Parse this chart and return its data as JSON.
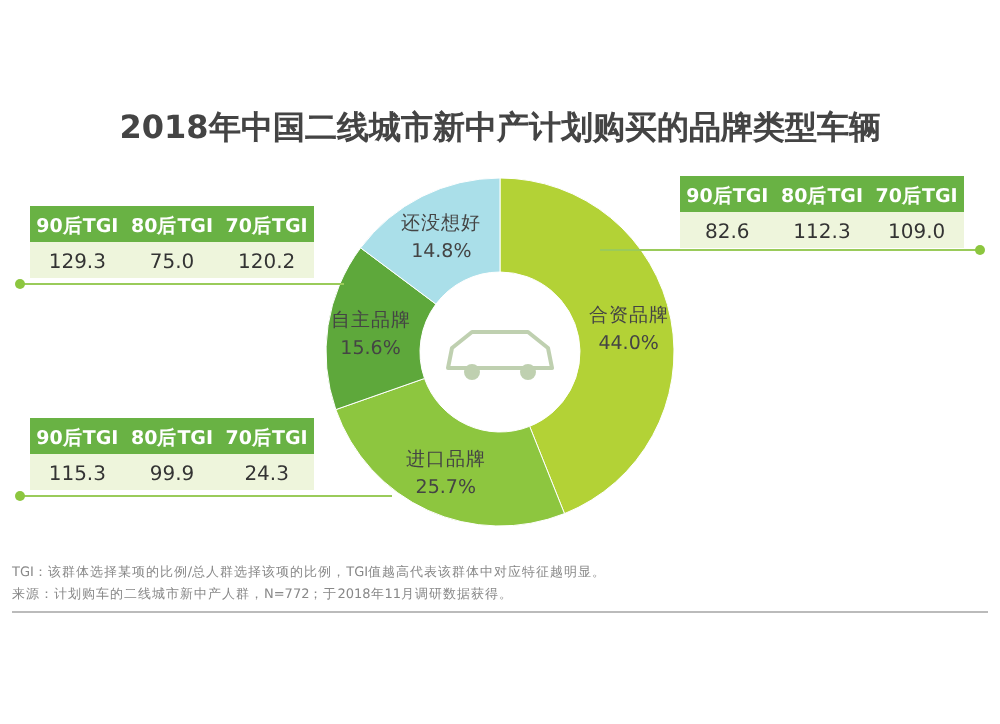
{
  "chart_data": [
    {
      "type": "donut",
      "title": "2018年中国二线城市新中产计划购买的品牌类型车辆",
      "categories": [
        "合资品牌",
        "进口品牌",
        "自主品牌",
        "还没想好"
      ],
      "values": [
        44.0,
        25.7,
        15.6,
        14.8
      ],
      "value_labels": [
        "44.0%",
        "25.7%",
        "15.6%",
        "14.8%"
      ],
      "colors": [
        "#b3d236",
        "#8dc63f",
        "#5ea83b",
        "#aadfe9"
      ],
      "annotations": [
        "TGI：该群体选择某项的比例/总人群选择该项的比例，TGI值越高代表该群体中对应特征越明显。",
        "来源：计划购车的二线城市新中产人群，N=772；于2018年11月调研数据获得。"
      ]
    },
    {
      "type": "other",
      "categories": [
        "90后TGI",
        "80后TGI",
        "70后TGI"
      ],
      "values": [
        129.3,
        75.0,
        120.2
      ],
      "value_labels": [
        "129.3",
        "75.0",
        "120.2"
      ]
    },
    {
      "type": "other",
      "categories": [
        "90后TGI",
        "80后TGI",
        "70后TGI"
      ],
      "values": [
        82.6,
        112.3,
        109.0
      ],
      "value_labels": [
        "82.6",
        "112.3",
        "109.0"
      ]
    },
    {
      "type": "other",
      "categories": [
        "90后TGI",
        "80后TGI",
        "70后TGI"
      ],
      "values": [
        115.3,
        99.9,
        24.3
      ],
      "value_labels": [
        "115.3",
        "99.9",
        "24.3"
      ]
    }
  ]
}
